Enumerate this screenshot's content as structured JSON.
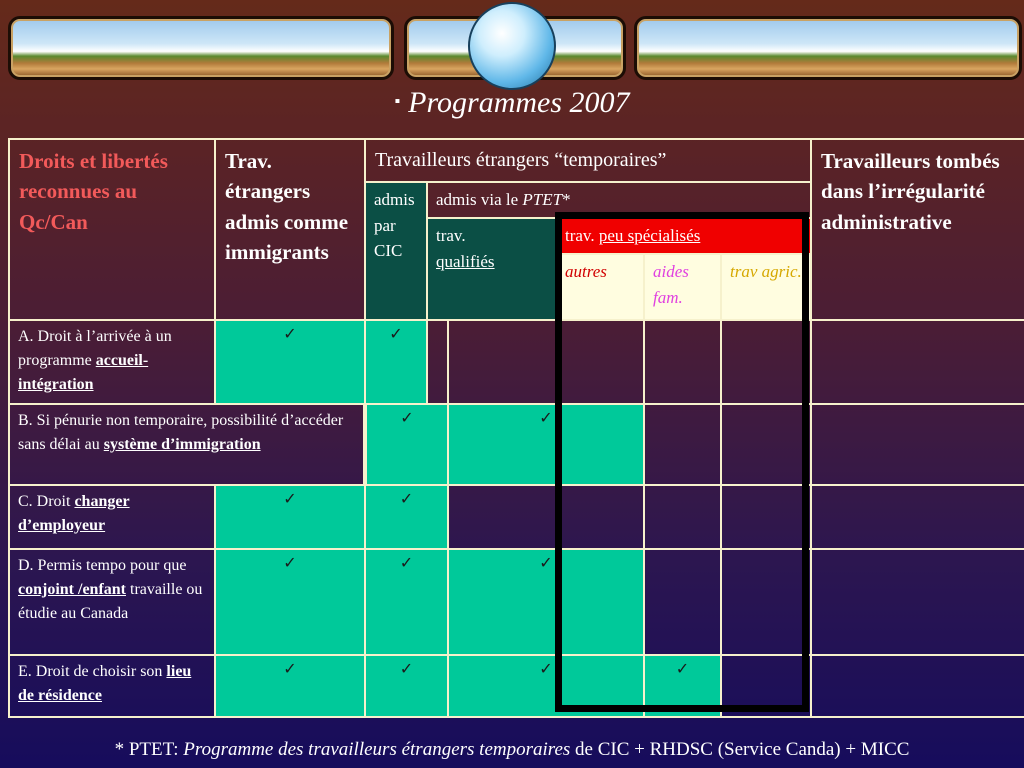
{
  "title": "Programmes 2007",
  "title_bullet": "▪",
  "header": {
    "rights": "Droits et libertés reconnues au Qc/Can",
    "immigrants": "Trav. étrangers admis comme immigrants",
    "temporaires": "Travailleurs étrangers “temporaires”",
    "irregulier": "Travailleurs tombés dans l’irrégularité administrative",
    "admis_cic": "admis par CIC",
    "admis_ptet_prefix": "admis via le ",
    "admis_ptet_em": "PTET",
    "admis_ptet_suffix": "*",
    "qualifies_prefix": "trav.",
    "qualifies_link": "qualifiés",
    "peu_prefix": "trav. ",
    "peu_link": "peu spécialisés",
    "autres": "autres",
    "aides": "aides fam.",
    "agric": "trav agric."
  },
  "rows": [
    {
      "label_pre": "A. Droit à l’arrivée à un programme ",
      "label_link": "accueil-intégration",
      "label_post": ""
    },
    {
      "label_pre": "B. Si pénurie non temporaire, possibilité d’accéder sans délai au ",
      "label_link": "système d’immigration",
      "label_post": ""
    },
    {
      "label_pre": "C. Droit ",
      "label_link": "changer d’employeur",
      "label_post": ""
    },
    {
      "label_pre": "D. Permis tempo pour que ",
      "label_link": "conjoint /enfant",
      "label_post": " travaille ou étudie au Canada"
    },
    {
      "label_pre": "E. Droit de choisir son ",
      "label_link": "lieu de résidence",
      "label_post": ""
    }
  ],
  "check": "✓",
  "footer": {
    "prefix": "* PTET: ",
    "em": "Programme des travailleurs étrangers temporaires",
    "suffix": " de CIC + RHDSC (Service Canda) + MICC"
  },
  "colors": {
    "teal": "#00c99a",
    "dark_teal": "#0b4f45",
    "red": "#f00000",
    "rights_red": "#f25a5a"
  }
}
